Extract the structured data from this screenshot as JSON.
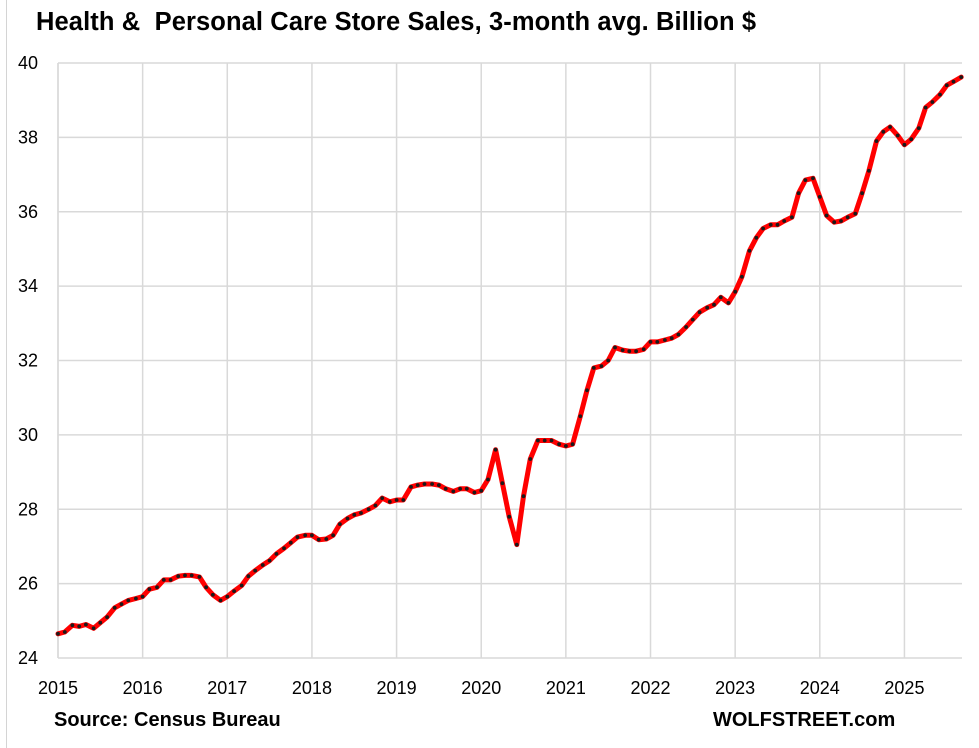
{
  "chart_data": {
    "type": "line",
    "title": "Health &  Personal Care Store Sales, 3-month avg. Billion $",
    "xlabel": "",
    "ylabel": "",
    "xlim": [
      2015,
      2025.68
    ],
    "ylim": [
      24,
      40
    ],
    "y_ticks": [
      "24",
      "26",
      "28",
      "30",
      "32",
      "34",
      "36",
      "38",
      "40"
    ],
    "x_ticks": [
      "2015",
      "2016",
      "2017",
      "2018",
      "2019",
      "2020",
      "2021",
      "2022",
      "2023",
      "2024",
      "2025"
    ],
    "grid": true,
    "legend": "none",
    "line_color": "#ff0000",
    "marker_color": "#1a1a1a",
    "series": [
      {
        "x": [
          2015.0,
          2015.08,
          2015.17,
          2015.25,
          2015.33,
          2015.42,
          2015.5,
          2015.58,
          2015.67,
          2015.75,
          2015.83,
          2015.92,
          2016.0,
          2016.08,
          2016.17,
          2016.25,
          2016.33,
          2016.42,
          2016.5,
          2016.58,
          2016.67,
          2016.75,
          2016.83,
          2016.92,
          2017.0,
          2017.08,
          2017.17,
          2017.25,
          2017.33,
          2017.42,
          2017.5,
          2017.58,
          2017.67,
          2017.75,
          2017.83,
          2017.92,
          2018.0,
          2018.08,
          2018.17,
          2018.25,
          2018.33,
          2018.42,
          2018.5,
          2018.58,
          2018.67,
          2018.75,
          2018.83,
          2018.92,
          2019.0,
          2019.08,
          2019.17,
          2019.25,
          2019.33,
          2019.42,
          2019.5,
          2019.58,
          2019.67,
          2019.75,
          2019.83,
          2019.92,
          2020.0,
          2020.08,
          2020.17,
          2020.25,
          2020.33,
          2020.42,
          2020.5,
          2020.58,
          2020.67,
          2020.75,
          2020.83,
          2020.92,
          2021.0,
          2021.08,
          2021.17,
          2021.25,
          2021.33,
          2021.42,
          2021.5,
          2021.58,
          2021.67,
          2021.75,
          2021.83,
          2021.92,
          2022.0,
          2022.08,
          2022.17,
          2022.25,
          2022.33,
          2022.42,
          2022.5,
          2022.58,
          2022.67,
          2022.75,
          2022.83,
          2022.92,
          2023.0,
          2023.08,
          2023.17,
          2023.25,
          2023.33,
          2023.42,
          2023.5,
          2023.58,
          2023.67,
          2023.75,
          2023.83,
          2023.92,
          2024.0,
          2024.08,
          2024.17,
          2024.25,
          2024.33,
          2024.42,
          2024.5,
          2024.58,
          2024.67,
          2024.75,
          2024.83,
          2024.92,
          2025.0,
          2025.08,
          2025.17,
          2025.25,
          2025.33,
          2025.42,
          2025.5,
          2025.58,
          2025.67
        ],
        "values": [
          24.65,
          24.7,
          24.88,
          24.85,
          24.9,
          24.8,
          24.95,
          25.1,
          25.35,
          25.45,
          25.55,
          25.6,
          25.65,
          25.85,
          25.9,
          26.1,
          26.1,
          26.2,
          26.22,
          26.22,
          26.18,
          25.9,
          25.7,
          25.55,
          25.65,
          25.8,
          25.95,
          26.2,
          26.35,
          26.5,
          26.62,
          26.8,
          26.95,
          27.1,
          27.25,
          27.3,
          27.3,
          27.18,
          27.2,
          27.3,
          27.6,
          27.75,
          27.85,
          27.9,
          28.0,
          28.1,
          28.3,
          28.2,
          28.25,
          28.25,
          28.6,
          28.65,
          28.68,
          28.68,
          28.65,
          28.55,
          28.48,
          28.55,
          28.55,
          28.45,
          28.5,
          28.8,
          29.6,
          28.7,
          27.8,
          27.05,
          28.35,
          29.35,
          29.85,
          29.85,
          29.85,
          29.75,
          29.7,
          29.75,
          30.5,
          31.2,
          31.8,
          31.85,
          32.0,
          32.35,
          32.28,
          32.25,
          32.25,
          32.3,
          32.5,
          32.5,
          32.55,
          32.6,
          32.7,
          32.9,
          33.1,
          33.3,
          33.42,
          33.5,
          33.7,
          33.55,
          33.85,
          34.25,
          34.95,
          35.3,
          35.55,
          35.65,
          35.65,
          35.75,
          35.85,
          36.5,
          36.85,
          36.9,
          36.4,
          35.9,
          35.72,
          35.75,
          35.85,
          35.95,
          36.5,
          37.1,
          37.9,
          38.15,
          38.28,
          38.05,
          37.8,
          37.95,
          38.25,
          38.8,
          38.95,
          39.15,
          39.4,
          39.5,
          39.62
        ]
      }
    ]
  },
  "footer": {
    "source": "Source: Census Bureau",
    "brand": "WOLFSTREET.com"
  }
}
